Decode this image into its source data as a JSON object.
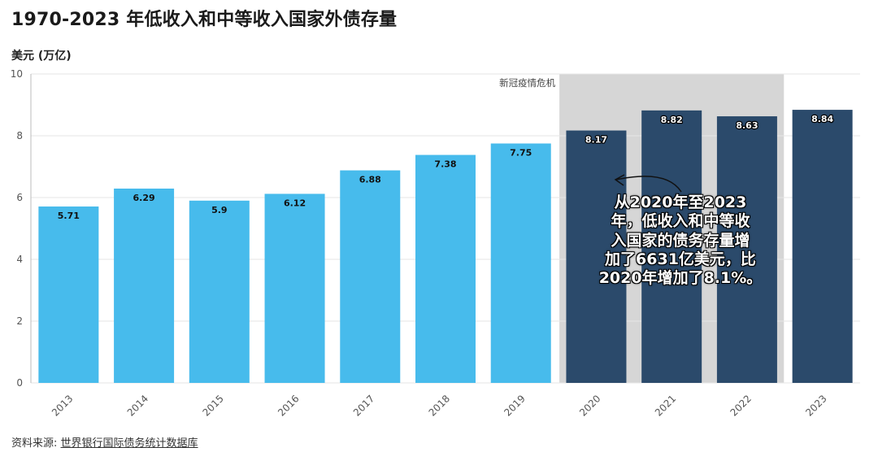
{
  "title": "1970-2023 年低收入和中等收入国家外债存量",
  "unit_label": "美元 (万亿)",
  "source": {
    "prefix": "资料来源: ",
    "link": "世界银行国际债务统计数据库"
  },
  "shade_label": "新冠疫情危机",
  "annotation": "从2020年至2023\n年，低收入和中等收\n入国家的债务存量增\n加了6631亿美元，比\n2020年增加了8.1%。",
  "colors": {
    "light_bar": "#47bbec",
    "dark_bar": "#2b4a6b",
    "shade": "#d6d6d6",
    "grid": "#e6e6e6"
  },
  "chart_data": {
    "type": "bar",
    "categories": [
      "2013",
      "2014",
      "2015",
      "2016",
      "2017",
      "2018",
      "2019",
      "2020",
      "2021",
      "2022",
      "2023"
    ],
    "values": [
      5.71,
      6.29,
      5.9,
      6.12,
      6.88,
      7.38,
      7.75,
      8.17,
      8.82,
      8.63,
      8.84
    ],
    "value_labels": [
      "5.71",
      "6.29",
      "5.9",
      "6.12",
      "6.88",
      "7.38",
      "7.75",
      "8.17",
      "8.82",
      "8.63",
      "8.84"
    ],
    "y_ticks": [
      "0",
      "2",
      "4",
      "6",
      "8",
      "10"
    ],
    "ylim": [
      0,
      10
    ],
    "grid": true,
    "shaded_categories": [
      "2020",
      "2021",
      "2022"
    ],
    "dark_from": "2020"
  }
}
